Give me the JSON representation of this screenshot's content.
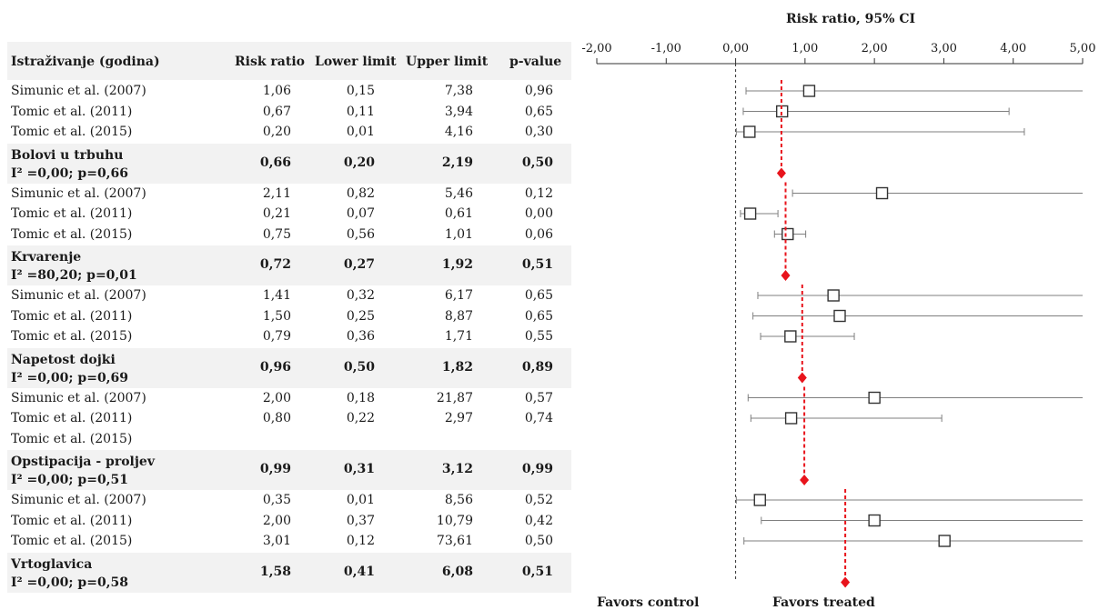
{
  "columns": {
    "study": "Istraživanje (godina)",
    "rr": "Risk ratio",
    "lower": "Lower limit",
    "upper": "Upper limit",
    "p": "p-value"
  },
  "groups": [
    {
      "name": "Bolovi u trbuhu",
      "stat": "I² =0,00; p=0,66",
      "studies": [
        {
          "study": "Simunic et al. (2007)",
          "rr": "1,06",
          "lower": "0,15",
          "upper": "7,38",
          "p": "0,96"
        },
        {
          "study": "Tomic et al. (2011)",
          "rr": "0,67",
          "lower": "0,11",
          "upper": "3,94",
          "p": "0,65"
        },
        {
          "study": "Tomic et al. (2015)",
          "rr": "0,20",
          "lower": "0,01",
          "upper": "4,16",
          "p": "0,30"
        }
      ],
      "summary": {
        "rr": "0,66",
        "lower": "0,20",
        "upper": "2,19",
        "p": "0,50"
      }
    },
    {
      "name": "Krvarenje",
      "stat": "I² =80,20; p=0,01",
      "studies": [
        {
          "study": "Simunic et al. (2007)",
          "rr": "2,11",
          "lower": "0,82",
          "upper": "5,46",
          "p": "0,12"
        },
        {
          "study": "Tomic et al. (2011)",
          "rr": "0,21",
          "lower": "0,07",
          "upper": "0,61",
          "p": "0,00"
        },
        {
          "study": "Tomic et al. (2015)",
          "rr": "0,75",
          "lower": "0,56",
          "upper": "1,01",
          "p": "0,06"
        }
      ],
      "summary": {
        "rr": "0,72",
        "lower": "0,27",
        "upper": "1,92",
        "p": "0,51"
      }
    },
    {
      "name": "Napetost dojki",
      "stat": "I² =0,00; p=0,69",
      "studies": [
        {
          "study": "Simunic et al. (2007)",
          "rr": "1,41",
          "lower": "0,32",
          "upper": "6,17",
          "p": "0,65"
        },
        {
          "study": "Tomic et al. (2011)",
          "rr": "1,50",
          "lower": "0,25",
          "upper": "8,87",
          "p": "0,65"
        },
        {
          "study": "Tomic et al. (2015)",
          "rr": "0,79",
          "lower": "0,36",
          "upper": "1,71",
          "p": "0,55"
        }
      ],
      "summary": {
        "rr": "0,96",
        "lower": "0,50",
        "upper": "1,82",
        "p": "0,89"
      }
    },
    {
      "name": "Opstipacija - proljev",
      "stat": "I² =0,00; p=0,51",
      "studies": [
        {
          "study": "Simunic et al. (2007)",
          "rr": "2,00",
          "lower": "0,18",
          "upper": "21,87",
          "p": "0,57"
        },
        {
          "study": "Tomic et al. (2011)",
          "rr": "0,80",
          "lower": "0,22",
          "upper": "2,97",
          "p": "0,74"
        },
        {
          "study": "Tomic et al. (2015)",
          "rr": "",
          "lower": "",
          "upper": "",
          "p": ""
        }
      ],
      "summary": {
        "rr": "0,99",
        "lower": "0,31",
        "upper": "3,12",
        "p": "0,99"
      }
    },
    {
      "name": "Vrtoglavica",
      "stat": "I² =0,00; p=0,58",
      "studies": [
        {
          "study": "Simunic et al. (2007)",
          "rr": "0,35",
          "lower": "0,01",
          "upper": "8,56",
          "p": "0,52"
        },
        {
          "study": "Tomic et al. (2011)",
          "rr": "2,00",
          "lower": "0,37",
          "upper": "10,79",
          "p": "0,42"
        },
        {
          "study": "Tomic et al. (2015)",
          "rr": "3,01",
          "lower": "0,12",
          "upper": "73,61",
          "p": "0,50"
        }
      ],
      "summary": {
        "rr": "1,58",
        "lower": "0,41",
        "upper": "6,08",
        "p": "0,51"
      }
    }
  ],
  "chart_data": {
    "type": "forest",
    "title": "Risk ratio, 95% CI",
    "xlim": [
      -2,
      5
    ],
    "xticks": [
      -2,
      -1,
      0,
      1,
      2,
      3,
      4,
      5
    ],
    "xtick_labels": [
      "-2,00",
      "-1,00",
      "0,00",
      "1,00",
      "2,00",
      "3,00",
      "4,00",
      "5,00"
    ],
    "reference_line": 0,
    "labels": {
      "left": "Favors control",
      "right": "Favors treated"
    },
    "colors": {
      "summary": "#e8141c",
      "study": "#333333",
      "ci": "#7f7f7f"
    },
    "groups": [
      {
        "name": "Bolovi u trbuhu",
        "studies": [
          {
            "rr": 1.06,
            "lower": 0.15,
            "upper": 7.38
          },
          {
            "rr": 0.67,
            "lower": 0.11,
            "upper": 3.94
          },
          {
            "rr": 0.2,
            "lower": 0.01,
            "upper": 4.16
          }
        ],
        "summary": {
          "rr": 0.66,
          "lower": 0.2,
          "upper": 2.19
        }
      },
      {
        "name": "Krvarenje",
        "studies": [
          {
            "rr": 2.11,
            "lower": 0.82,
            "upper": 5.46
          },
          {
            "rr": 0.21,
            "lower": 0.07,
            "upper": 0.61
          },
          {
            "rr": 0.75,
            "lower": 0.56,
            "upper": 1.01
          }
        ],
        "summary": {
          "rr": 0.72,
          "lower": 0.27,
          "upper": 1.92
        }
      },
      {
        "name": "Napetost dojki",
        "studies": [
          {
            "rr": 1.41,
            "lower": 0.32,
            "upper": 6.17
          },
          {
            "rr": 1.5,
            "lower": 0.25,
            "upper": 8.87
          },
          {
            "rr": 0.79,
            "lower": 0.36,
            "upper": 1.71
          }
        ],
        "summary": {
          "rr": 0.96,
          "lower": 0.5,
          "upper": 1.82
        }
      },
      {
        "name": "Opstipacija - proljev",
        "studies": [
          {
            "rr": 2.0,
            "lower": 0.18,
            "upper": 21.87
          },
          {
            "rr": 0.8,
            "lower": 0.22,
            "upper": 2.97
          },
          null
        ],
        "summary": {
          "rr": 0.99,
          "lower": 0.31,
          "upper": 3.12
        }
      },
      {
        "name": "Vrtoglavica",
        "studies": [
          {
            "rr": 0.35,
            "lower": 0.01,
            "upper": 8.56
          },
          {
            "rr": 2.0,
            "lower": 0.37,
            "upper": 10.79
          },
          {
            "rr": 3.01,
            "lower": 0.12,
            "upper": 73.61
          }
        ],
        "summary": {
          "rr": 1.58,
          "lower": 0.41,
          "upper": 6.08
        }
      }
    ]
  }
}
